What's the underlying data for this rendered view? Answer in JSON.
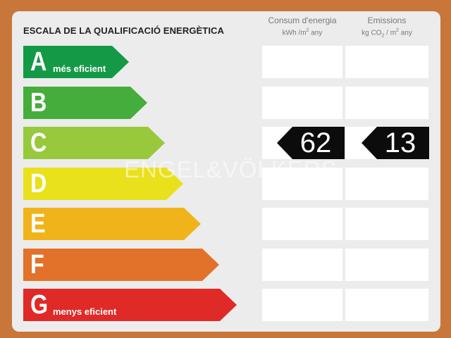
{
  "title": "ESCALA DE LA QUALIFICACIÓ ENERGÈTICA",
  "columns": {
    "energy": {
      "label": "Consum d'energia",
      "unit_prefix": "kWh /m",
      "unit_suffix": " any"
    },
    "emissions": {
      "label": "Emissions",
      "unit_prefix": "kg CO",
      "unit_mid": "  / m",
      "unit_suffix": "  any"
    }
  },
  "ratings": [
    {
      "letter": "A",
      "sublabel": "més eficient",
      "color": "#149a47"
    },
    {
      "letter": "B",
      "sublabel": "",
      "color": "#45ad3b"
    },
    {
      "letter": "C",
      "sublabel": "",
      "color": "#98c93c"
    },
    {
      "letter": "D",
      "sublabel": "",
      "color": "#e8e11b"
    },
    {
      "letter": "E",
      "sublabel": "",
      "color": "#f0b31a"
    },
    {
      "letter": "F",
      "sublabel": "",
      "color": "#e2722a"
    },
    {
      "letter": "G",
      "sublabel": "menys eficient",
      "color": "#df2a28"
    }
  ],
  "result": {
    "rating_index": 2,
    "energy_value": "62",
    "emissions_value": "13"
  },
  "watermark": "ENGEL&VÖLKERS"
}
